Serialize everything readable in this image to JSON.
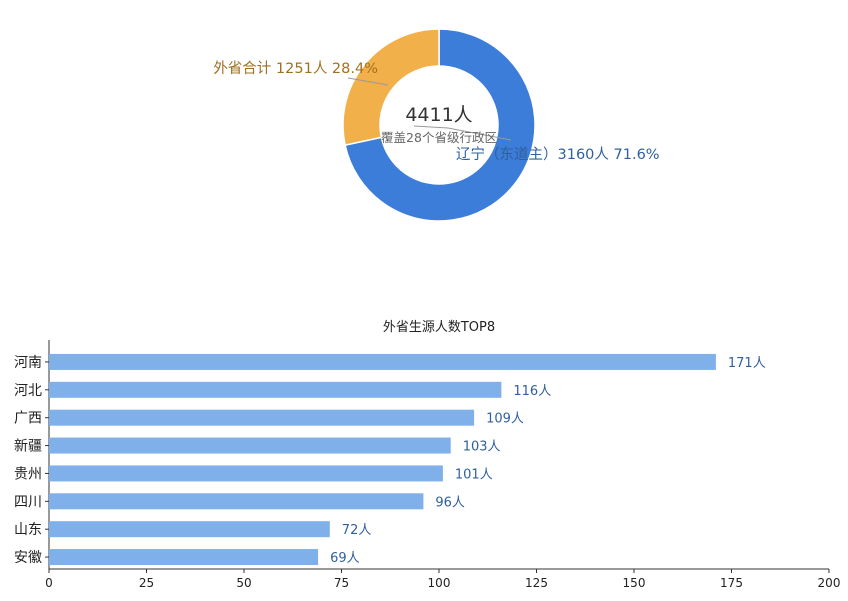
{
  "chart_data": [
    {
      "type": "pie",
      "center_total": "4411人",
      "center_subtitle": "覆盖28个省级行政区",
      "slices": [
        {
          "label": "辽宁（东道主）3160人 71.6%",
          "value": 3160,
          "color": "#3b7dd8"
        },
        {
          "label": "外省合计 1251人 28.4%",
          "value": 1251,
          "color": "#f2b04a"
        }
      ],
      "label_colors": [
        "#2f5f9e",
        "#a07020"
      ]
    },
    {
      "type": "bar",
      "orientation": "horizontal",
      "title": "外省生源人数TOP8",
      "categories": [
        "河南",
        "河北",
        "广西",
        "新疆",
        "贵州",
        "四川",
        "山东",
        "安徽"
      ],
      "values": [
        171,
        116,
        109,
        103,
        101,
        96,
        72,
        69
      ],
      "value_labels": [
        "171人",
        "116人",
        "109人",
        "103人",
        "101人",
        "96人",
        "72人",
        "69人"
      ],
      "xlim": [
        0,
        200
      ],
      "xticks": [
        0,
        25,
        50,
        75,
        100,
        125,
        150,
        175,
        200
      ],
      "bar_color": "#7fb0ea",
      "value_label_color": "#2f5f9e"
    }
  ]
}
